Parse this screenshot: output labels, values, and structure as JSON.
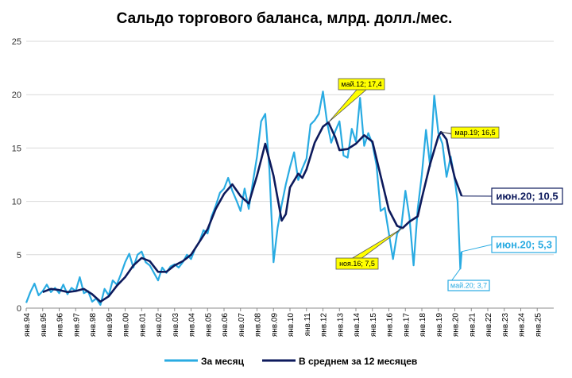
{
  "chart_data": {
    "type": "line",
    "title": "Сальдо торгового баланса, млрд. долл./мес.",
    "xlabel": "",
    "ylabel": "",
    "ylim": [
      0,
      25
    ],
    "yticks": [
      0,
      5,
      10,
      15,
      20,
      25
    ],
    "x_range": [
      "1994-01",
      "2025-12"
    ],
    "xtick_labels": [
      "янв.94",
      "янв.95",
      "янв.96",
      "янв.97",
      "янв.98",
      "янв.99",
      "янв.00",
      "янв.01",
      "янв.02",
      "янв.03",
      "янв.04",
      "янв.05",
      "янв.06",
      "янв.07",
      "янв.08",
      "янв.09",
      "янв.10",
      "янв.11",
      "янв.12",
      "янв.13",
      "янв.14",
      "янв.15",
      "янв.16",
      "янв.17",
      "янв.18",
      "янв.19",
      "янв.20",
      "янв.21",
      "янв.22",
      "янв.23",
      "янв.24",
      "янв.25"
    ],
    "grid": "horizontal",
    "legend_position": "bottom",
    "colors": {
      "monthly": "#29abe2",
      "average": "#0d1a5c",
      "callout_fill": "#ffff00",
      "grid": "#d9d9d9"
    },
    "series": [
      {
        "name": "За месяц",
        "points": [
          [
            "1994-01",
            0.5
          ],
          [
            "1994-04",
            1.5
          ],
          [
            "1994-07",
            2.3
          ],
          [
            "1994-10",
            1.2
          ],
          [
            "1995-01",
            1.6
          ],
          [
            "1995-04",
            2.2
          ],
          [
            "1995-07",
            1.5
          ],
          [
            "1995-10",
            1.9
          ],
          [
            "1996-01",
            1.4
          ],
          [
            "1996-04",
            2.2
          ],
          [
            "1996-07",
            1.3
          ],
          [
            "1996-10",
            1.9
          ],
          [
            "1997-01",
            1.6
          ],
          [
            "1997-04",
            2.9
          ],
          [
            "1997-07",
            1.4
          ],
          [
            "1997-10",
            1.6
          ],
          [
            "1998-01",
            0.6
          ],
          [
            "1998-04",
            0.9
          ],
          [
            "1998-07",
            0.3
          ],
          [
            "1998-10",
            1.8
          ],
          [
            "1999-01",
            1.2
          ],
          [
            "1999-04",
            2.6
          ],
          [
            "1999-07",
            2.2
          ],
          [
            "1999-10",
            3.2
          ],
          [
            "2000-01",
            4.3
          ],
          [
            "2000-04",
            5.1
          ],
          [
            "2000-07",
            3.8
          ],
          [
            "2000-10",
            5.0
          ],
          [
            "2001-01",
            5.3
          ],
          [
            "2001-04",
            4.3
          ],
          [
            "2001-07",
            4.0
          ],
          [
            "2001-10",
            3.3
          ],
          [
            "2002-01",
            2.6
          ],
          [
            "2002-04",
            3.8
          ],
          [
            "2002-07",
            3.3
          ],
          [
            "2002-10",
            3.9
          ],
          [
            "2003-01",
            4.1
          ],
          [
            "2003-04",
            3.8
          ],
          [
            "2003-07",
            4.3
          ],
          [
            "2003-10",
            5.0
          ],
          [
            "2004-01",
            4.6
          ],
          [
            "2004-04",
            5.6
          ],
          [
            "2004-07",
            6.2
          ],
          [
            "2004-10",
            7.3
          ],
          [
            "2005-01",
            7.0
          ],
          [
            "2005-04",
            8.6
          ],
          [
            "2005-07",
            9.6
          ],
          [
            "2005-10",
            10.8
          ],
          [
            "2006-01",
            11.2
          ],
          [
            "2006-04",
            12.2
          ],
          [
            "2006-07",
            11.0
          ],
          [
            "2006-10",
            10.1
          ],
          [
            "2007-01",
            9.1
          ],
          [
            "2007-04",
            11.2
          ],
          [
            "2007-07",
            9.3
          ],
          [
            "2007-10",
            11.8
          ],
          [
            "2008-01",
            14.2
          ],
          [
            "2008-04",
            17.5
          ],
          [
            "2008-07",
            18.2
          ],
          [
            "2008-10",
            13.0
          ],
          [
            "2009-01",
            4.3
          ],
          [
            "2009-04",
            7.5
          ],
          [
            "2009-07",
            9.7
          ],
          [
            "2009-10",
            11.6
          ],
          [
            "2010-01",
            13.2
          ],
          [
            "2010-04",
            14.6
          ],
          [
            "2010-07",
            12.0
          ],
          [
            "2010-10",
            13.1
          ],
          [
            "2011-01",
            14.0
          ],
          [
            "2011-04",
            17.2
          ],
          [
            "2011-07",
            17.6
          ],
          [
            "2011-10",
            18.2
          ],
          [
            "2012-01",
            20.3
          ],
          [
            "2012-04",
            17.4
          ],
          [
            "2012-07",
            15.5
          ],
          [
            "2012-10",
            16.6
          ],
          [
            "2013-01",
            17.5
          ],
          [
            "2013-04",
            14.3
          ],
          [
            "2013-07",
            14.1
          ],
          [
            "2013-10",
            16.8
          ],
          [
            "2014-01",
            15.6
          ],
          [
            "2014-04",
            19.7
          ],
          [
            "2014-07",
            15.2
          ],
          [
            "2014-10",
            16.4
          ],
          [
            "2015-01",
            15.4
          ],
          [
            "2015-04",
            13.4
          ],
          [
            "2015-07",
            9.1
          ],
          [
            "2015-10",
            9.4
          ],
          [
            "2016-01",
            7.0
          ],
          [
            "2016-04",
            4.6
          ],
          [
            "2016-07",
            7.0
          ],
          [
            "2016-10",
            7.6
          ],
          [
            "2017-01",
            11.0
          ],
          [
            "2017-04",
            8.5
          ],
          [
            "2017-07",
            4.0
          ],
          [
            "2017-10",
            9.3
          ],
          [
            "2018-01",
            12.5
          ],
          [
            "2018-04",
            16.7
          ],
          [
            "2018-07",
            13.3
          ],
          [
            "2018-10",
            19.9
          ],
          [
            "2019-01",
            16.4
          ],
          [
            "2019-04",
            15.4
          ],
          [
            "2019-07",
            12.3
          ],
          [
            "2019-10",
            14.2
          ],
          [
            "2020-01",
            12.0
          ],
          [
            "2020-03",
            10.0
          ],
          [
            "2020-05",
            3.7
          ],
          [
            "2020-06",
            5.3
          ]
        ]
      },
      {
        "name": "В среднем за 12 месяцев",
        "points": [
          [
            "1995-01",
            1.5
          ],
          [
            "1995-07",
            1.8
          ],
          [
            "1996-01",
            1.7
          ],
          [
            "1996-07",
            1.5
          ],
          [
            "1997-01",
            1.6
          ],
          [
            "1997-07",
            1.8
          ],
          [
            "1998-01",
            1.3
          ],
          [
            "1998-07",
            0.6
          ],
          [
            "1999-01",
            1.1
          ],
          [
            "1999-07",
            2.1
          ],
          [
            "2000-01",
            2.9
          ],
          [
            "2000-07",
            4.0
          ],
          [
            "2001-01",
            4.7
          ],
          [
            "2001-07",
            4.4
          ],
          [
            "2002-01",
            3.4
          ],
          [
            "2002-07",
            3.4
          ],
          [
            "2003-01",
            4.0
          ],
          [
            "2003-07",
            4.4
          ],
          [
            "2004-01",
            5.0
          ],
          [
            "2004-07",
            6.2
          ],
          [
            "2005-01",
            7.4
          ],
          [
            "2005-07",
            9.3
          ],
          [
            "2006-01",
            10.7
          ],
          [
            "2006-07",
            11.6
          ],
          [
            "2007-01",
            10.5
          ],
          [
            "2007-07",
            9.8
          ],
          [
            "2008-01",
            12.4
          ],
          [
            "2008-07",
            15.4
          ],
          [
            "2009-01",
            12.4
          ],
          [
            "2009-07",
            8.2
          ],
          [
            "2009-10",
            8.8
          ],
          [
            "2010-01",
            11.3
          ],
          [
            "2010-07",
            12.6
          ],
          [
            "2010-10",
            12.2
          ],
          [
            "2011-01",
            13.0
          ],
          [
            "2011-07",
            15.5
          ],
          [
            "2012-01",
            17.0
          ],
          [
            "2012-05",
            17.4
          ],
          [
            "2012-10",
            16.0
          ],
          [
            "2013-01",
            14.8
          ],
          [
            "2013-07",
            14.9
          ],
          [
            "2014-01",
            15.4
          ],
          [
            "2014-07",
            16.2
          ],
          [
            "2015-01",
            15.6
          ],
          [
            "2015-07",
            12.4
          ],
          [
            "2016-01",
            9.2
          ],
          [
            "2016-07",
            7.7
          ],
          [
            "2016-11",
            7.5
          ],
          [
            "2017-04",
            8.1
          ],
          [
            "2017-10",
            8.6
          ],
          [
            "2018-01",
            10.3
          ],
          [
            "2018-07",
            13.5
          ],
          [
            "2019-01",
            16.1
          ],
          [
            "2019-03",
            16.5
          ],
          [
            "2019-07",
            15.8
          ],
          [
            "2019-10",
            13.8
          ],
          [
            "2020-01",
            12.2
          ],
          [
            "2020-06",
            10.5
          ]
        ]
      }
    ],
    "annotations": [
      {
        "text": "май.12; 17,4",
        "x": "2012-05",
        "y": 17.4
      },
      {
        "text": "мар.19; 16,5",
        "x": "2019-03",
        "y": 16.5
      },
      {
        "text": "ноя.16; 7,5",
        "x": "2016-11",
        "y": 7.5
      },
      {
        "text": "июн.20; 10,5",
        "x": "2020-06",
        "y": 10.5
      },
      {
        "text": "июн.20; 5,3",
        "x": "2020-06",
        "y": 5.3
      },
      {
        "text": "май.20; 3,7",
        "x": "2020-05",
        "y": 3.7
      }
    ]
  }
}
